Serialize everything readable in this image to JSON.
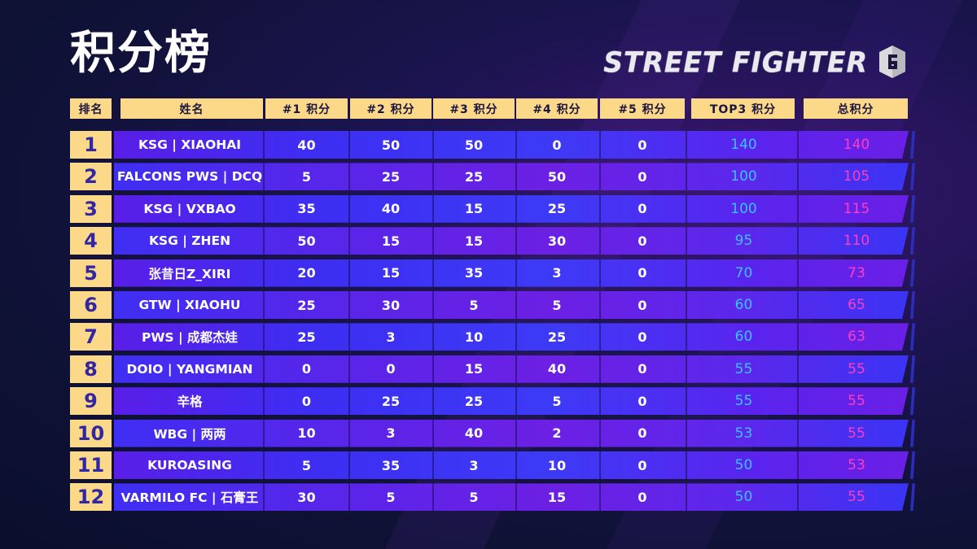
{
  "title": "积分榜",
  "logo": {
    "text": "STREET FIGHTER",
    "mark_icon": "sf6-logo-icon"
  },
  "colors": {
    "header": "#fcd889",
    "top3": "#3cc2ff",
    "total": "#ff3ec2"
  },
  "columns": [
    "排名",
    "姓名",
    "#1 积分",
    "#2 积分",
    "#3 积分",
    "#4 积分",
    "#5 积分",
    "TOP3 积分",
    "总积分"
  ],
  "rows": [
    {
      "rank": "1",
      "name": "KSG | XIAOHAI",
      "s1": "40",
      "s2": "50",
      "s3": "50",
      "s4": "0",
      "s5": "0",
      "top3": "140",
      "total": "140"
    },
    {
      "rank": "2",
      "name": "FALCONS PWS | DCQ",
      "s1": "5",
      "s2": "25",
      "s3": "25",
      "s4": "50",
      "s5": "0",
      "top3": "100",
      "total": "105"
    },
    {
      "rank": "3",
      "name": "KSG | VXBAO",
      "s1": "35",
      "s2": "40",
      "s3": "15",
      "s4": "25",
      "s5": "0",
      "top3": "100",
      "total": "115"
    },
    {
      "rank": "4",
      "name": "KSG | ZHEN",
      "s1": "50",
      "s2": "15",
      "s3": "15",
      "s4": "30",
      "s5": "0",
      "top3": "95",
      "total": "110"
    },
    {
      "rank": "5",
      "name": "张昔日Z_XIRI",
      "s1": "20",
      "s2": "15",
      "s3": "35",
      "s4": "3",
      "s5": "0",
      "top3": "70",
      "total": "73"
    },
    {
      "rank": "6",
      "name": "GTW | XIAOHU",
      "s1": "25",
      "s2": "30",
      "s3": "5",
      "s4": "5",
      "s5": "0",
      "top3": "60",
      "total": "65"
    },
    {
      "rank": "7",
      "name": "PWS | 成都杰娃",
      "s1": "25",
      "s2": "3",
      "s3": "10",
      "s4": "25",
      "s5": "0",
      "top3": "60",
      "total": "63"
    },
    {
      "rank": "8",
      "name": "DOIO | YANGMIAN",
      "s1": "0",
      "s2": "0",
      "s3": "15",
      "s4": "40",
      "s5": "0",
      "top3": "55",
      "total": "55"
    },
    {
      "rank": "9",
      "name": "辛格",
      "s1": "0",
      "s2": "25",
      "s3": "25",
      "s4": "5",
      "s5": "0",
      "top3": "55",
      "total": "55"
    },
    {
      "rank": "10",
      "name": "WBG | 两两",
      "s1": "10",
      "s2": "3",
      "s3": "40",
      "s4": "2",
      "s5": "0",
      "top3": "53",
      "total": "55"
    },
    {
      "rank": "11",
      "name": "KUROASING",
      "s1": "5",
      "s2": "35",
      "s3": "3",
      "s4": "10",
      "s5": "0",
      "top3": "50",
      "total": "53"
    },
    {
      "rank": "12",
      "name": "VARMILO FC | 石膏王",
      "s1": "30",
      "s2": "5",
      "s3": "5",
      "s4": "15",
      "s5": "0",
      "top3": "50",
      "total": "55"
    }
  ]
}
